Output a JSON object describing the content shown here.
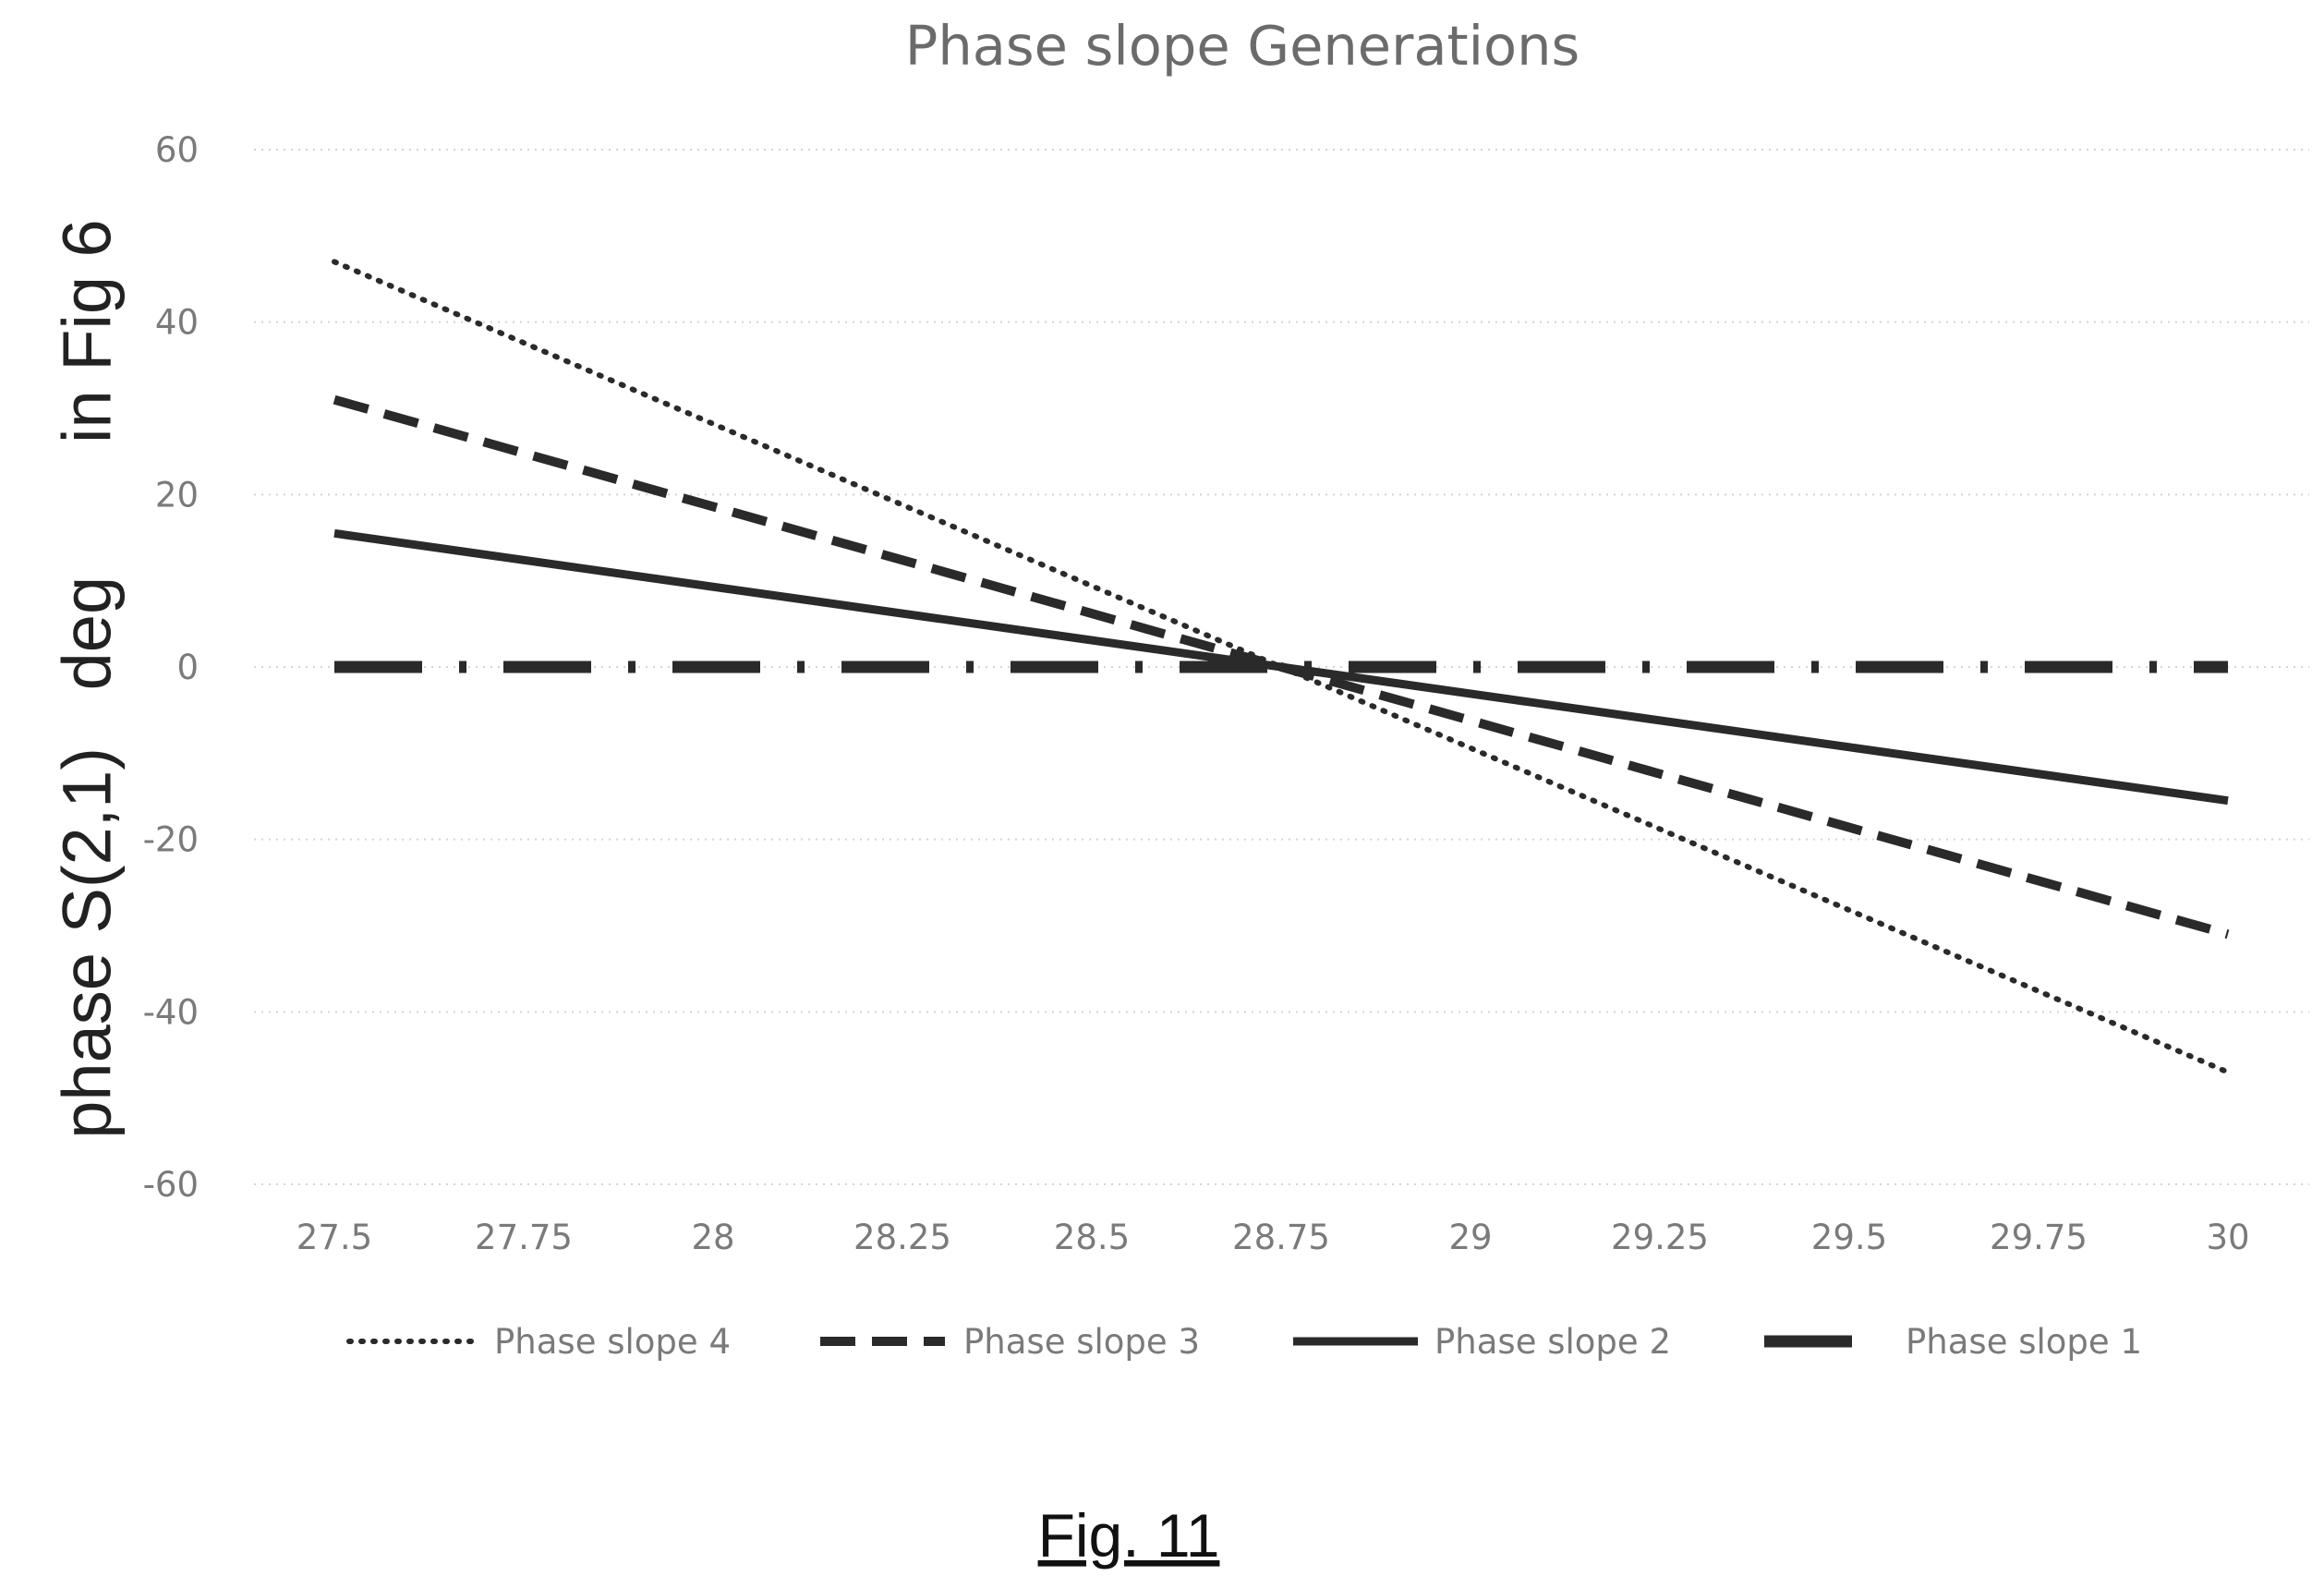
{
  "chart_data": {
    "type": "line",
    "title": "Phase slope Generations",
    "ylabel": "phase S(2,1) deg in Fig 6",
    "xlabel": "",
    "x": [
      27.5,
      30
    ],
    "x_ticks": [
      "27.5",
      "27.75",
      "28",
      "28.25",
      "28.5",
      "28.75",
      "29",
      "29.25",
      "29.5",
      "29.75",
      "30"
    ],
    "y_ticks": [
      "60",
      "40",
      "20",
      "0",
      "-20",
      "-40",
      "-60"
    ],
    "xlim": [
      27.5,
      30
    ],
    "ylim": [
      -60,
      60
    ],
    "grid": "horizontal dotted",
    "legend_position": "bottom",
    "series": [
      {
        "name": "Phase slope 4",
        "style": "dotted",
        "values": [
          47,
          -47
        ]
      },
      {
        "name": "Phase slope 3",
        "style": "dashed",
        "values": [
          31,
          -31
        ]
      },
      {
        "name": "Phase slope 2",
        "style": "solid",
        "values": [
          15.5,
          -15.5
        ]
      },
      {
        "name": "Phase slope 1",
        "style": "dash-dot",
        "values": [
          0,
          0
        ]
      }
    ]
  },
  "caption": "Fig. 11",
  "colors": {
    "series": "#2a2a2a",
    "text": "#7a7a7a",
    "grid": "#d4d4d4"
  }
}
